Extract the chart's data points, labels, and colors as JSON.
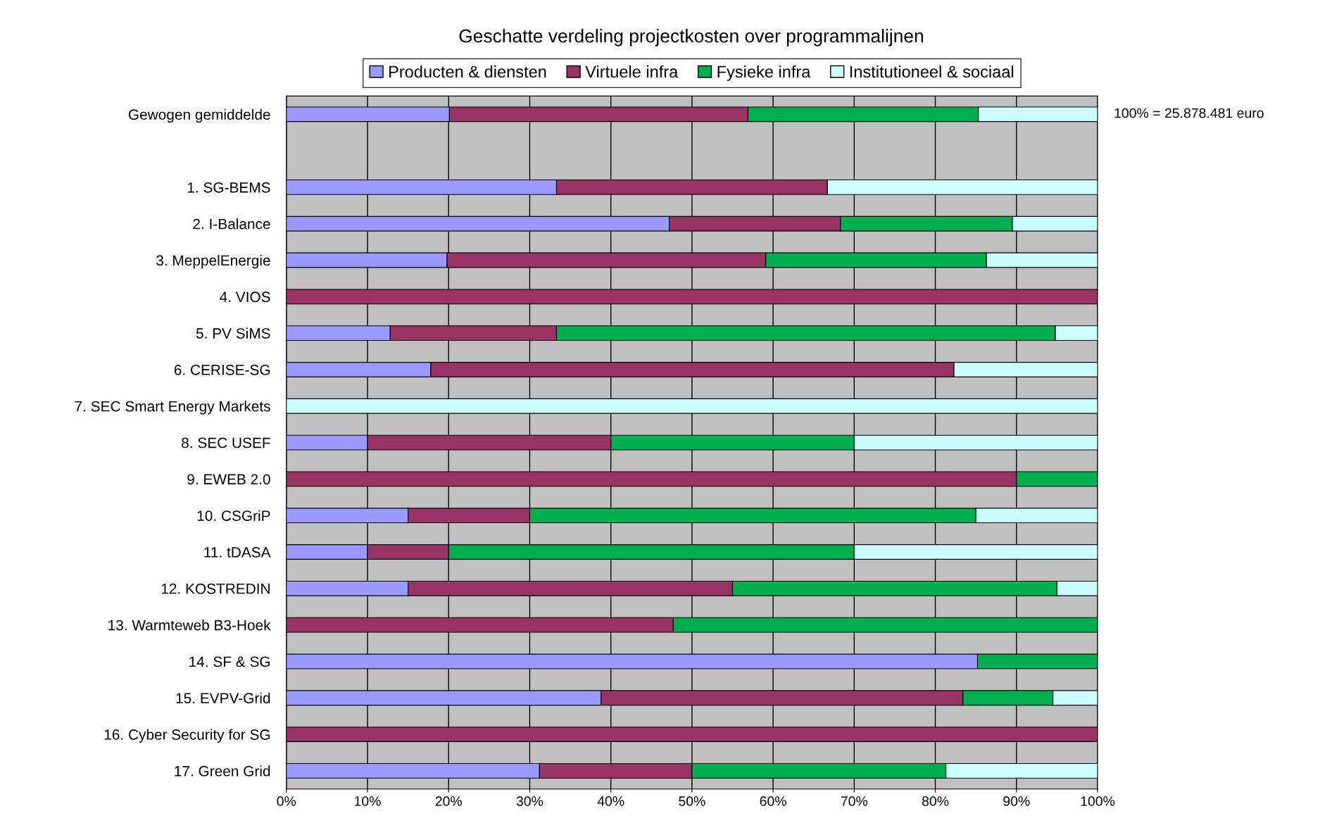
{
  "chart_data": {
    "type": "bar",
    "orientation": "horizontal",
    "stacked": true,
    "title": "Geschatte verdeling projectkosten over programmalijnen",
    "categories": [
      "Gewogen gemiddelde",
      null,
      "1. SG-BEMS",
      "2. I-Balance",
      "3. MeppelEnergie",
      "4. VIOS",
      "5. PV SiMS",
      "6. CERISE-SG",
      "7. SEC Smart Energy Markets",
      "8. SEC USEF",
      "9. EWEB 2.0",
      "10. CSGriP",
      "11. tDASA",
      "12. KOSTREDIN",
      "13. Warmteweb B3-Hoek",
      "14. SF & SG",
      "15. EVPV-Grid",
      "16. Cyber Security for SG",
      "17. Green Grid"
    ],
    "series": [
      {
        "name": "Producten & diensten",
        "color": "#9999ff",
        "values": [
          20.1,
          null,
          33.3,
          47.2,
          19.8,
          0,
          12.8,
          17.8,
          0,
          10,
          0,
          15,
          10,
          15,
          0,
          85.2,
          38.8,
          0,
          31.2
        ]
      },
      {
        "name": "Virtuele infra",
        "color": "#993366",
        "values": [
          36.8,
          null,
          33.4,
          21.1,
          39.3,
          100,
          20.5,
          64.5,
          0,
          30,
          90,
          15,
          10,
          40,
          47.7,
          0,
          44.6,
          100,
          18.8
        ]
      },
      {
        "name": "Fysieke infra",
        "color": "#00b050",
        "values": [
          28.4,
          null,
          0,
          21.2,
          27.2,
          0,
          61.5,
          0,
          0,
          30,
          10,
          55,
          50,
          40,
          52.3,
          14.8,
          11.1,
          0,
          31.3
        ]
      },
      {
        "name": "Institutioneel & sociaal",
        "color": "#ccffff",
        "values": [
          14.7,
          null,
          33.3,
          10.5,
          13.7,
          0,
          5.2,
          17.7,
          100,
          30,
          0,
          15,
          30,
          5,
          0,
          0,
          5.5,
          0,
          18.7
        ]
      }
    ],
    "xlim": [
      0,
      100
    ],
    "xticks": [
      {
        "value": 0,
        "label": "0%"
      },
      {
        "value": 10,
        "label": "10%"
      },
      {
        "value": 20,
        "label": "20%"
      },
      {
        "value": 30,
        "label": "30%"
      },
      {
        "value": 40,
        "label": "40%"
      },
      {
        "value": 50,
        "label": "50%"
      },
      {
        "value": 60,
        "label": "60%"
      },
      {
        "value": 70,
        "label": "70%"
      },
      {
        "value": 80,
        "label": "80%"
      },
      {
        "value": 90,
        "label": "90%"
      },
      {
        "value": 100,
        "label": "100%"
      }
    ],
    "grid": "x",
    "legend": "top",
    "annotations": [
      "100% = 25.878.481 euro"
    ]
  }
}
